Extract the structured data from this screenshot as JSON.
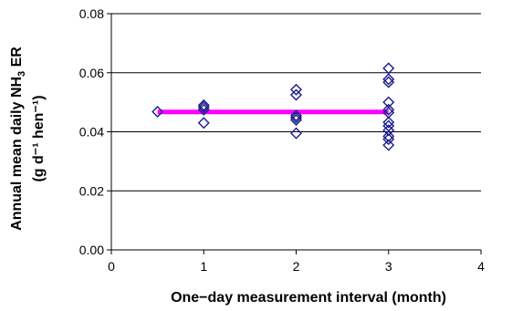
{
  "chart_data": {
    "type": "scatter",
    "xlabel": "One−day measurement interval (month)",
    "ylabel_line1": "Annual mean daily NH",
    "ylabel_sub": "3",
    "ylabel_line1_end": " ER",
    "ylabel_line2": "(g d⁻¹ hen⁻¹)",
    "xlim": [
      0,
      4
    ],
    "ylim": [
      0,
      0.08
    ],
    "x_ticks": [
      "0",
      "1",
      "2",
      "3",
      "4"
    ],
    "y_ticks": [
      "0.00",
      "0.02",
      "0.04",
      "0.06",
      "0.08"
    ],
    "grid": "horizontal",
    "series": [
      {
        "marker": "diamond-open",
        "color": "#1a1a8c",
        "points": [
          [
            0.5,
            0.0468
          ],
          [
            1,
            0.049
          ],
          [
            1,
            0.0483
          ],
          [
            1,
            0.0475
          ],
          [
            1,
            0.043
          ],
          [
            2,
            0.0543
          ],
          [
            2,
            0.0525
          ],
          [
            2,
            0.0455
          ],
          [
            2,
            0.0448
          ],
          [
            2,
            0.044
          ],
          [
            2,
            0.0395
          ],
          [
            3,
            0.0615
          ],
          [
            3,
            0.0578
          ],
          [
            3,
            0.0568
          ],
          [
            3,
            0.05
          ],
          [
            3,
            0.0475
          ],
          [
            3,
            0.0465
          ],
          [
            3,
            0.0432
          ],
          [
            3,
            0.042
          ],
          [
            3,
            0.0405
          ],
          [
            3,
            0.0385
          ],
          [
            3,
            0.0375
          ],
          [
            3,
            0.0355
          ]
        ]
      }
    ],
    "mean_line": {
      "x": [
        0.5,
        3
      ],
      "y": 0.0467,
      "color": "#ff00ff"
    }
  }
}
